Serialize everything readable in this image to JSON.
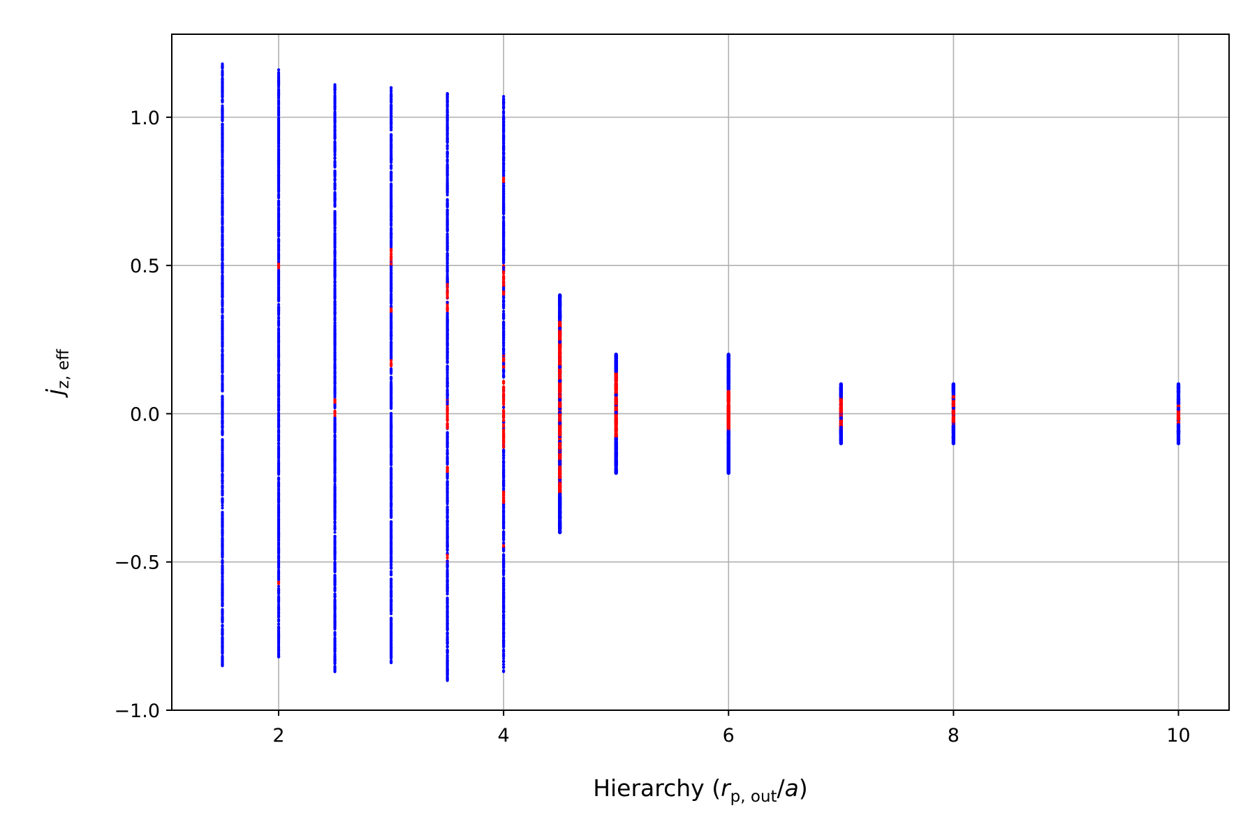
{
  "chart_data": {
    "type": "scatter",
    "xlabel": {
      "prefix": "Hierarchy (",
      "var": "r",
      "sub": "p, out",
      "slash": "/",
      "var2": "a",
      "suffix": ")"
    },
    "ylabel": {
      "var": "j",
      "sub": "z, eff"
    },
    "xlim": [
      1.05,
      10.45
    ],
    "ylim": [
      -1.0,
      1.28
    ],
    "xticks": [
      2,
      4,
      6,
      8,
      10
    ],
    "xtick_labels": [
      "2",
      "4",
      "6",
      "8",
      "10"
    ],
    "yticks": [
      -1.0,
      -0.5,
      0.0,
      0.5,
      1.0
    ],
    "ytick_labels": [
      "−1.0",
      "−0.5",
      "0.0",
      "0.5",
      "1.0"
    ],
    "grid": true,
    "colors": {
      "blue": "#0000ff",
      "red": "#ff0000",
      "grid": "#b0b0b0"
    },
    "columns": [
      {
        "x": 1.5,
        "ymin": -0.85,
        "ymax": 1.18,
        "red_ranges": []
      },
      {
        "x": 2.0,
        "ymin": -0.82,
        "ymax": 1.16,
        "red_ranges": [
          [
            0.49,
            0.51
          ],
          [
            -0.58,
            -0.56
          ]
        ]
      },
      {
        "x": 2.5,
        "ymin": -0.87,
        "ymax": 1.11,
        "red_ranges": [
          [
            0.03,
            0.05
          ],
          [
            -0.01,
            0.01
          ]
        ]
      },
      {
        "x": 3.0,
        "ymin": -0.84,
        "ymax": 1.1,
        "red_ranges": [
          [
            0.5,
            0.56
          ],
          [
            0.34,
            0.36
          ],
          [
            0.16,
            0.18
          ]
        ]
      },
      {
        "x": 3.5,
        "ymin": -0.9,
        "ymax": 1.08,
        "red_ranges": [
          [
            0.34,
            0.44
          ],
          [
            -0.05,
            0.05
          ],
          [
            -0.2,
            -0.18
          ],
          [
            -0.5,
            -0.47
          ]
        ]
      },
      {
        "x": 4.0,
        "ymin": -0.87,
        "ymax": 1.07,
        "red_ranges": [
          [
            0.78,
            0.8
          ],
          [
            0.4,
            0.5
          ],
          [
            0.15,
            0.2
          ],
          [
            -0.12,
            0.12
          ],
          [
            -0.3,
            -0.25
          ],
          [
            -0.45,
            -0.43
          ]
        ]
      },
      {
        "x": 4.5,
        "ymin": -0.4,
        "ymax": 0.4,
        "red_ranges": [
          [
            -0.27,
            0.31
          ]
        ]
      },
      {
        "x": 5.0,
        "ymin": -0.2,
        "ymax": 0.2,
        "red_ranges": [
          [
            -0.08,
            0.14
          ]
        ]
      },
      {
        "x": 6.0,
        "ymin": -0.2,
        "ymax": 0.2,
        "red_ranges": [
          [
            -0.06,
            0.08
          ]
        ]
      },
      {
        "x": 7.0,
        "ymin": -0.1,
        "ymax": 0.1,
        "red_ranges": [
          [
            -0.05,
            0.06
          ]
        ]
      },
      {
        "x": 8.0,
        "ymin": -0.1,
        "ymax": 0.1,
        "red_ranges": [
          [
            -0.04,
            0.06
          ]
        ]
      },
      {
        "x": 10.0,
        "ymin": -0.1,
        "ymax": 0.1,
        "red_ranges": [
          [
            -0.03,
            0.03
          ]
        ]
      }
    ]
  }
}
